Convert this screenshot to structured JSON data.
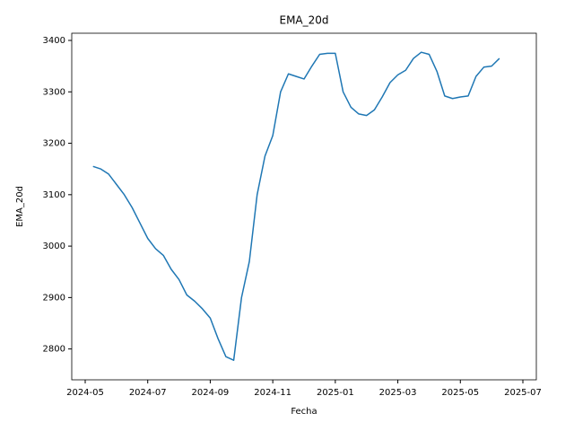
{
  "chart_data": {
    "type": "line",
    "title": "EMA_20d",
    "x_label": "Fecha",
    "y_label": "EMA_20d",
    "categories": [
      "2024-05",
      null,
      null,
      null,
      null,
      null,
      null,
      null,
      "2024-07",
      null,
      null,
      null,
      null,
      null,
      null,
      null,
      "2024-09",
      null,
      null,
      null,
      null,
      null,
      null,
      null,
      "2024-11",
      null,
      null,
      null,
      null,
      null,
      null,
      null,
      "2025-01",
      null,
      null,
      null,
      null,
      null,
      null,
      null,
      "2025-03",
      null,
      null,
      null,
      null,
      null,
      null,
      null,
      "2025-05",
      null,
      null,
      null,
      null,
      null,
      null,
      null,
      "2025-07"
    ],
    "series": [
      {
        "name": "EMA_20d",
        "color": "#1f77b4",
        "values": [
          null,
          3155,
          3150,
          3140,
          3120,
          3100,
          3075,
          3045,
          3015,
          2995,
          2982,
          2955,
          2935,
          2905,
          2893,
          2878,
          2860,
          2820,
          2785,
          2778,
          2900,
          2970,
          3100,
          3175,
          3215,
          3300,
          3335,
          3330,
          3325,
          3350,
          3373,
          3375,
          3375,
          3300,
          3270,
          3257,
          3254,
          3265,
          3290,
          3318,
          3333,
          3342,
          3365,
          3377,
          3373,
          3340,
          3292,
          3287,
          3290,
          3292,
          3330,
          3348,
          3350,
          3365,
          null,
          null,
          null
        ]
      }
    ],
    "ylim": [
      2740,
      3414
    ],
    "yticks": [
      2800,
      2900,
      3000,
      3100,
      3200,
      3300,
      3400
    ],
    "grid": false
  }
}
